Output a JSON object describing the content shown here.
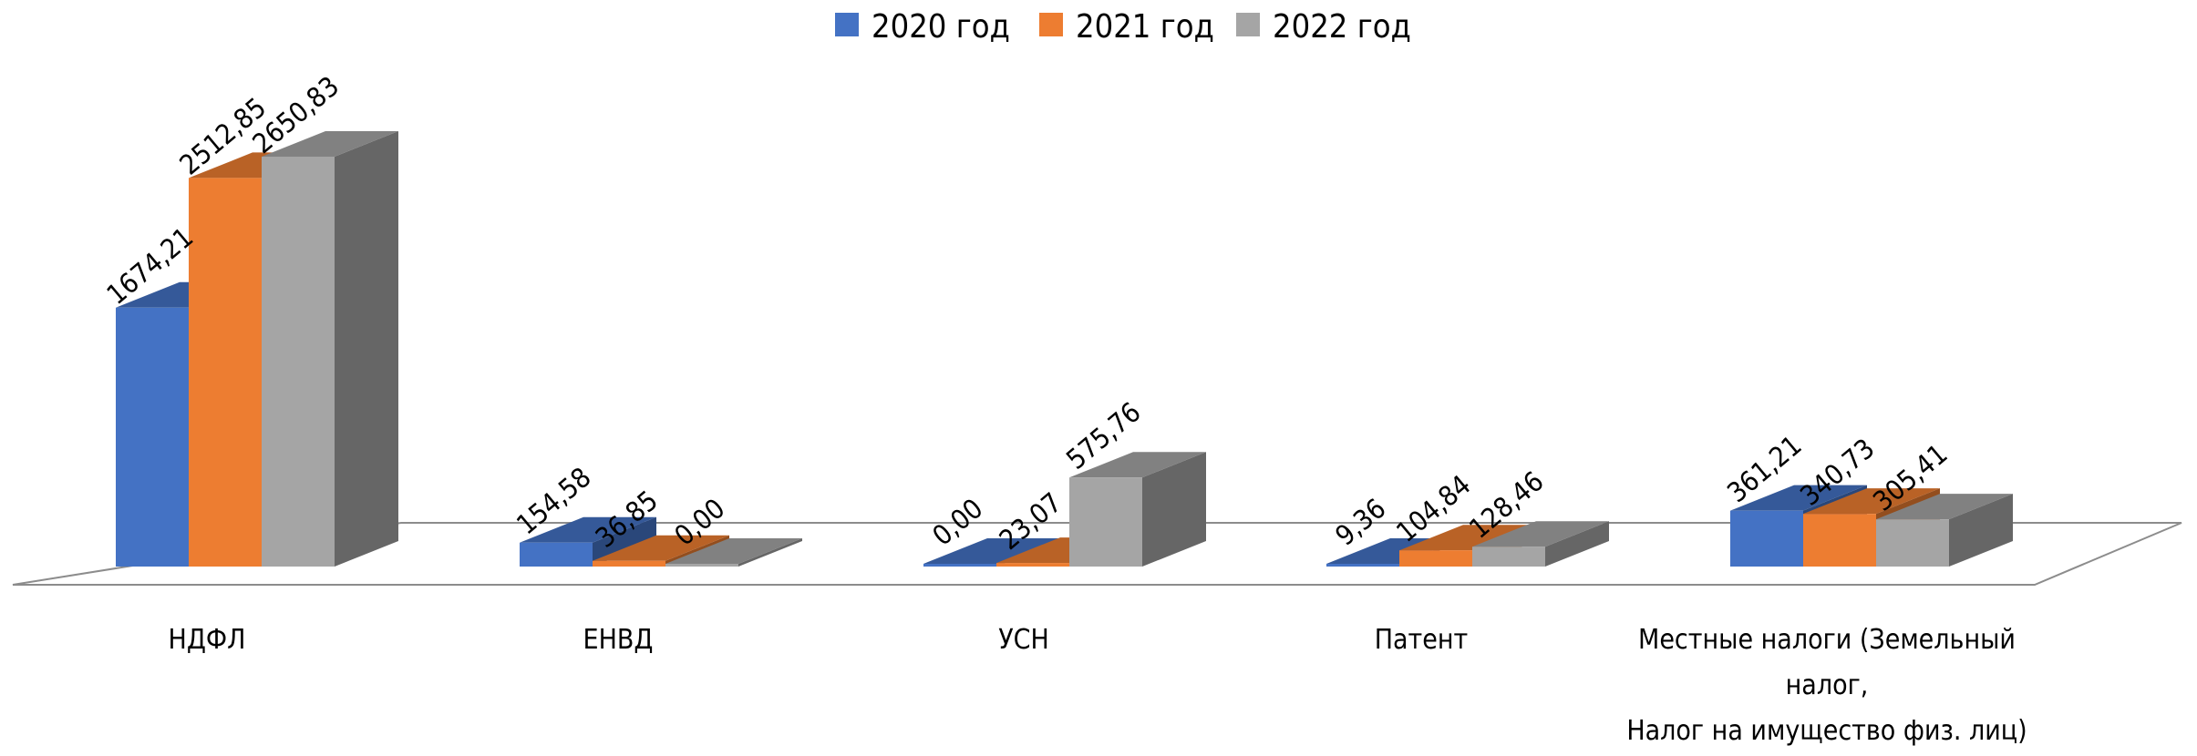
{
  "chart_data": {
    "type": "bar",
    "title": "",
    "xlabel": "",
    "ylabel": "",
    "legend_position": "top-center",
    "grid": false,
    "ylim": [
      0,
      2800
    ],
    "categories": [
      [
        "НДФЛ"
      ],
      [
        "ЕНВД"
      ],
      [
        "УСН"
      ],
      [
        "Патент"
      ],
      [
        "Местные налоги (Земельный",
        "налог,",
        "Налог на имущество физ. лиц)"
      ]
    ],
    "series": [
      {
        "name": "2020 год",
        "color": "#4472C4",
        "values": [
          1674.21,
          154.58,
          0.0,
          9.36,
          361.21
        ],
        "labels": [
          "1674,21",
          "154,58",
          "0,00",
          "9,36",
          "361,21"
        ]
      },
      {
        "name": "2021 год",
        "color": "#ED7D31",
        "values": [
          2512.85,
          36.85,
          23.07,
          104.84,
          340.73
        ],
        "labels": [
          "2512,85",
          "36,85",
          "23,07",
          "104,84",
          "340,73"
        ]
      },
      {
        "name": "2022 год",
        "color": "#A5A5A5",
        "values": [
          2650.83,
          0.0,
          575.76,
          128.46,
          305.41
        ],
        "labels": [
          "2650,83",
          "0,00",
          "575,76",
          "128,46",
          "305,41"
        ]
      }
    ]
  }
}
